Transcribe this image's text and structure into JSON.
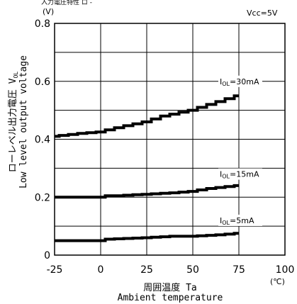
{
  "chart_data": {
    "type": "line",
    "title": "(V)",
    "top_text": "入力電圧特性 ロ -",
    "supply_label": "Vcc=5V",
    "x_unit": "(℃)",
    "y_unit": "(V)",
    "xlabel_jp": "周囲温度 Ta",
    "xlabel_en": "Ambient temperature",
    "ylabel_jp": "ローレベル出力電圧",
    "ylabel_en": "Low level output voltage",
    "ylabel_symbol": "V",
    "ylabel_symbol_sub": "OL",
    "xlim": [
      -25,
      100
    ],
    "ylim": [
      0,
      0.8
    ],
    "xticks": [
      -25,
      0,
      25,
      50,
      75,
      100
    ],
    "yticks": [
      0,
      0.2,
      0.4,
      0.6,
      0.8
    ],
    "xtick_labels": [
      "-25",
      "0",
      "25",
      "50",
      "75",
      "100"
    ],
    "ytick_labels": [
      "0",
      "0.2",
      "0.4",
      "0.6",
      "0.8"
    ],
    "grid": true,
    "series": [
      {
        "name": "IOL=30mA",
        "name_main": "I",
        "name_sub": "OL",
        "name_rest": "=30mA",
        "x": [
          -25,
          -10,
          0,
          10,
          25,
          35,
          50,
          60,
          75
        ],
        "y": [
          0.41,
          0.42,
          0.425,
          0.44,
          0.46,
          0.48,
          0.5,
          0.52,
          0.55
        ]
      },
      {
        "name": "IOL=15mA",
        "name_main": "I",
        "name_sub": "OL",
        "name_rest": "=15mA",
        "x": [
          -25,
          0,
          5,
          10,
          25,
          40,
          50,
          60,
          75
        ],
        "y": [
          0.2,
          0.2,
          0.205,
          0.205,
          0.21,
          0.215,
          0.22,
          0.23,
          0.24
        ]
      },
      {
        "name": "IOL=5mA",
        "name_main": "I",
        "name_sub": "OL",
        "name_rest": "=5mA",
        "x": [
          -25,
          0,
          5,
          25,
          40,
          50,
          65,
          75
        ],
        "y": [
          0.05,
          0.05,
          0.055,
          0.06,
          0.065,
          0.065,
          0.07,
          0.075
        ]
      }
    ]
  }
}
